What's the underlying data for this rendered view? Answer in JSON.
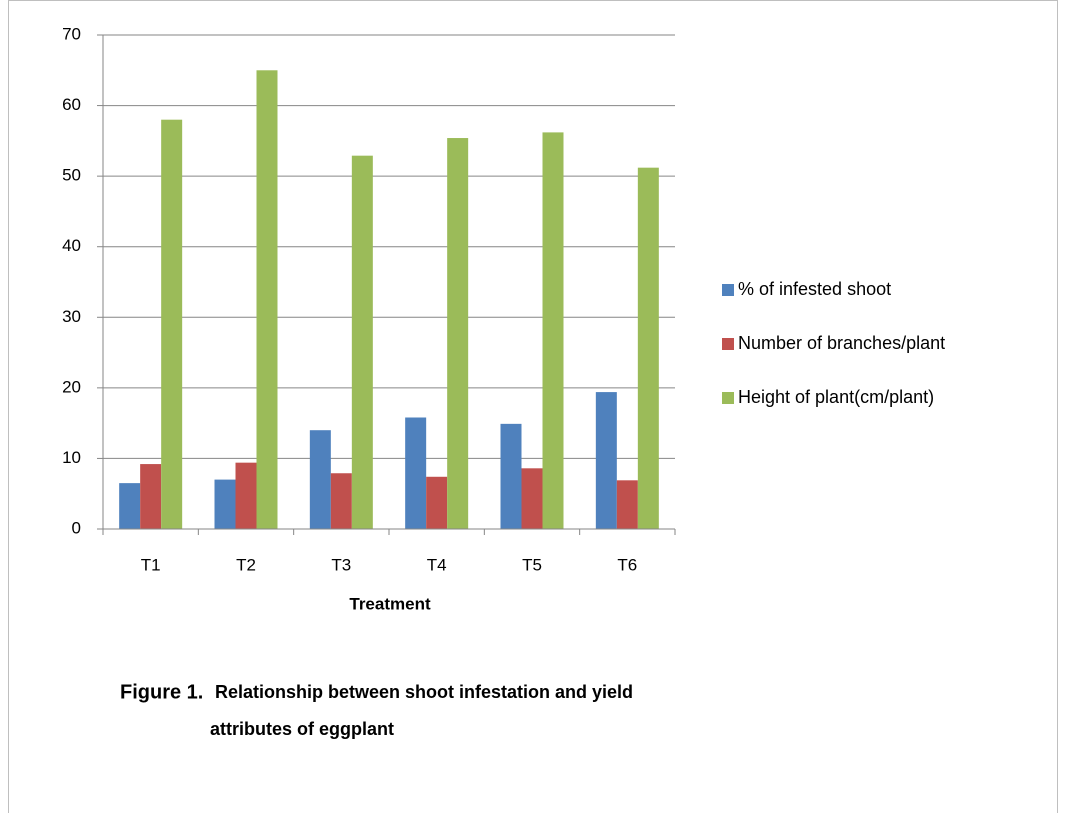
{
  "chart_data": {
    "type": "bar",
    "categories": [
      "T1",
      "T2",
      "T3",
      "T4",
      "T5",
      "T6"
    ],
    "series": [
      {
        "name": "% of infested shoot",
        "color": "#4f81bd",
        "values": [
          6.5,
          7,
          14,
          15.8,
          14.9,
          19.4
        ]
      },
      {
        "name": "Number of branches/plant",
        "color": "#c0504d",
        "values": [
          9.2,
          9.4,
          7.9,
          7.4,
          8.6,
          6.9
        ]
      },
      {
        "name": "Height of plant(cm/plant)",
        "color": "#9bbb59",
        "values": [
          58,
          65,
          52.9,
          55.4,
          56.2,
          51.2
        ]
      }
    ],
    "x_label": "Treatment",
    "ylim": [
      0,
      70
    ],
    "yticks": [
      0,
      10,
      20,
      30,
      40,
      50,
      60,
      70
    ],
    "grid": true,
    "legend": "right",
    "caption_label": "Figure 1.",
    "caption_lines": [
      "Relationship between shoot infestation and yield",
      "attributes of eggplant"
    ]
  }
}
